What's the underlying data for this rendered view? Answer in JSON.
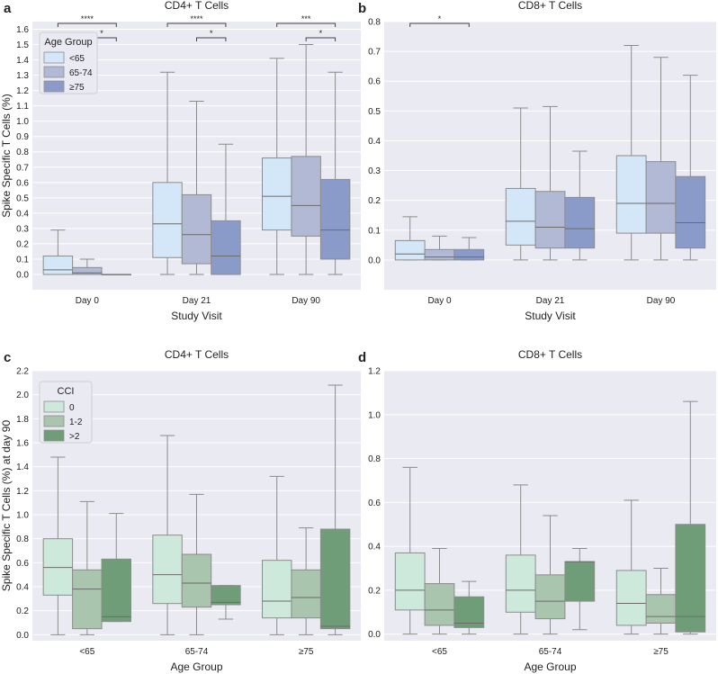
{
  "figure_colors": {
    "panel_bg": "#eaeaf2",
    "grid": "#ffffff",
    "whisker": "#8c8c8c",
    "median": "#6b6b6b",
    "age_palette": [
      "#d3e7f8",
      "#b1b9d5",
      "#8a9bc9"
    ],
    "cci_palette": [
      "#cde9dc",
      "#a9c5ad",
      "#6e9d78"
    ]
  },
  "chart_data": [
    {
      "id": "a",
      "panel_label": "a",
      "type": "box",
      "title": "CD4+ T Cells",
      "xlabel": "Study Visit",
      "ylabel": "Spike Specific T Cells (%)",
      "ylim": [
        -0.1,
        1.65
      ],
      "yticks": [
        "0.0",
        "0.1",
        "0.2",
        "0.3",
        "0.4",
        "0.5",
        "0.6",
        "0.7",
        "0.8",
        "0.9",
        "1.0",
        "1.1",
        "1.2",
        "1.3",
        "1.4",
        "1.5",
        "1.6"
      ],
      "categories": [
        "Day 0",
        "Day 21",
        "Day 90"
      ],
      "legend": {
        "title": "Age Group",
        "entries": [
          "<65",
          "65-74",
          "≥75"
        ]
      },
      "series": [
        {
          "name": "<65",
          "boxes": [
            {
              "low": 0.0,
              "q1": 0.0,
              "median": 0.03,
              "q3": 0.12,
              "high": 0.29
            },
            {
              "low": 0.0,
              "q1": 0.11,
              "median": 0.33,
              "q3": 0.6,
              "high": 1.32
            },
            {
              "low": 0.0,
              "q1": 0.29,
              "median": 0.51,
              "q3": 0.76,
              "high": 1.41
            }
          ]
        },
        {
          "name": "65-74",
          "boxes": [
            {
              "low": 0.0,
              "q1": 0.0,
              "median": 0.01,
              "q3": 0.045,
              "high": 0.1
            },
            {
              "low": 0.0,
              "q1": 0.07,
              "median": 0.26,
              "q3": 0.52,
              "high": 1.13
            },
            {
              "low": 0.0,
              "q1": 0.25,
              "median": 0.45,
              "q3": 0.77,
              "high": 1.5
            }
          ]
        },
        {
          "name": "≥75",
          "boxes": [
            {
              "low": 0.0,
              "q1": 0.0,
              "median": 0.0,
              "q3": 0.0,
              "high": 0.0
            },
            {
              "low": 0.0,
              "q1": 0.0,
              "median": 0.12,
              "q3": 0.35,
              "high": 0.85
            },
            {
              "low": 0.0,
              "q1": 0.1,
              "median": 0.29,
              "q3": 0.62,
              "high": 1.32
            }
          ]
        }
      ],
      "brackets": [
        {
          "category": 0,
          "from": 0,
          "to": 2,
          "level": 1,
          "label": "****"
        },
        {
          "category": 0,
          "from": 1,
          "to": 2,
          "level": 0,
          "label": "*"
        },
        {
          "category": 1,
          "from": 0,
          "to": 2,
          "level": 1,
          "label": "****"
        },
        {
          "category": 1,
          "from": 1,
          "to": 2,
          "level": 0,
          "label": "*"
        },
        {
          "category": 2,
          "from": 0,
          "to": 2,
          "level": 1,
          "label": "***"
        },
        {
          "category": 2,
          "from": 1,
          "to": 2,
          "level": 0,
          "label": "*"
        }
      ]
    },
    {
      "id": "b",
      "panel_label": "b",
      "type": "box",
      "title": "CD8+ T Cells",
      "xlabel": "Study Visit",
      "ylabel": "",
      "ylim": [
        -0.1,
        0.8
      ],
      "yticks": [
        "0.0",
        "0.1",
        "0.2",
        "0.3",
        "0.4",
        "0.5",
        "0.6",
        "0.7",
        "0.8"
      ],
      "categories": [
        "Day 0",
        "Day 21",
        "Day 90"
      ],
      "series": [
        {
          "name": "<65",
          "boxes": [
            {
              "low": 0.0,
              "q1": 0.0,
              "median": 0.02,
              "q3": 0.065,
              "high": 0.145
            },
            {
              "low": 0.0,
              "q1": 0.05,
              "median": 0.13,
              "q3": 0.24,
              "high": 0.51
            },
            {
              "low": 0.0,
              "q1": 0.09,
              "median": 0.19,
              "q3": 0.35,
              "high": 0.72
            }
          ]
        },
        {
          "name": "65-74",
          "boxes": [
            {
              "low": 0.0,
              "q1": 0.0,
              "median": 0.01,
              "q3": 0.035,
              "high": 0.08
            },
            {
              "low": 0.0,
              "q1": 0.04,
              "median": 0.11,
              "q3": 0.23,
              "high": 0.515
            },
            {
              "low": 0.0,
              "q1": 0.09,
              "median": 0.19,
              "q3": 0.33,
              "high": 0.68
            }
          ]
        },
        {
          "name": "≥75",
          "boxes": [
            {
              "low": 0.0,
              "q1": 0.0,
              "median": 0.01,
              "q3": 0.035,
              "high": 0.075
            },
            {
              "low": 0.0,
              "q1": 0.04,
              "median": 0.105,
              "q3": 0.21,
              "high": 0.365
            },
            {
              "low": 0.0,
              "q1": 0.04,
              "median": 0.125,
              "q3": 0.28,
              "high": 0.62
            }
          ]
        }
      ],
      "brackets": [
        {
          "category": 0,
          "from": 0,
          "to": 2,
          "level": 1,
          "label": "*"
        }
      ]
    },
    {
      "id": "c",
      "panel_label": "c",
      "type": "box",
      "title": "CD4+ T Cells",
      "xlabel": "Age Group",
      "ylabel": "Spike Specific T Cells (%) at day 90",
      "ylim": [
        -0.05,
        2.2
      ],
      "yticks": [
        "0.0",
        "0.2",
        "0.4",
        "0.6",
        "0.8",
        "1.0",
        "1.2",
        "1.4",
        "1.6",
        "1.8",
        "2.0",
        "2.2"
      ],
      "categories": [
        "<65",
        "65-74",
        "≥75"
      ],
      "legend": {
        "title": "CCI",
        "entries": [
          "0",
          "1-2",
          ">2"
        ]
      },
      "series": [
        {
          "name": "0",
          "boxes": [
            {
              "low": 0.0,
              "q1": 0.33,
              "median": 0.56,
              "q3": 0.8,
              "high": 1.48
            },
            {
              "low": 0.0,
              "q1": 0.26,
              "median": 0.5,
              "q3": 0.83,
              "high": 1.66
            },
            {
              "low": 0.0,
              "q1": 0.14,
              "median": 0.28,
              "q3": 0.62,
              "high": 1.32
            }
          ]
        },
        {
          "name": "1-2",
          "boxes": [
            {
              "low": 0.0,
              "q1": 0.05,
              "median": 0.38,
              "q3": 0.54,
              "high": 1.11
            },
            {
              "low": 0.0,
              "q1": 0.23,
              "median": 0.43,
              "q3": 0.67,
              "high": 1.17
            },
            {
              "low": 0.0,
              "q1": 0.14,
              "median": 0.31,
              "q3": 0.54,
              "high": 0.89
            }
          ]
        },
        {
          "name": ">2",
          "boxes": [
            {
              "low": 0.11,
              "q1": 0.11,
              "median": 0.15,
              "q3": 0.63,
              "high": 1.01
            },
            {
              "low": 0.13,
              "q1": 0.25,
              "median": 0.27,
              "q3": 0.41,
              "high": 0.41
            },
            {
              "low": 0.0,
              "q1": 0.05,
              "median": 0.07,
              "q3": 0.88,
              "high": 2.08
            }
          ]
        }
      ],
      "brackets": []
    },
    {
      "id": "d",
      "panel_label": "d",
      "type": "box",
      "title": "CD8+ T Cells",
      "xlabel": "Age Group",
      "ylabel": "",
      "ylim": [
        -0.03,
        1.2
      ],
      "yticks": [
        "0.0",
        "0.2",
        "0.4",
        "0.6",
        "0.8",
        "1.0",
        "1.2"
      ],
      "categories": [
        "<65",
        "65-74",
        "≥75"
      ],
      "series": [
        {
          "name": "0",
          "boxes": [
            {
              "low": 0.0,
              "q1": 0.11,
              "median": 0.2,
              "q3": 0.37,
              "high": 0.76
            },
            {
              "low": 0.0,
              "q1": 0.1,
              "median": 0.2,
              "q3": 0.36,
              "high": 0.68
            },
            {
              "low": 0.0,
              "q1": 0.04,
              "median": 0.14,
              "q3": 0.29,
              "high": 0.61
            }
          ]
        },
        {
          "name": "1-2",
          "boxes": [
            {
              "low": 0.0,
              "q1": 0.04,
              "median": 0.11,
              "q3": 0.23,
              "high": 0.39
            },
            {
              "low": 0.0,
              "q1": 0.07,
              "median": 0.15,
              "q3": 0.27,
              "high": 0.54
            },
            {
              "low": 0.0,
              "q1": 0.05,
              "median": 0.08,
              "q3": 0.18,
              "high": 0.3
            }
          ]
        },
        {
          "name": ">2",
          "boxes": [
            {
              "low": 0.0,
              "q1": 0.03,
              "median": 0.05,
              "q3": 0.17,
              "high": 0.24
            },
            {
              "low": 0.02,
              "q1": 0.15,
              "median": 0.33,
              "q3": 0.33,
              "high": 0.39
            },
            {
              "low": 0.0,
              "q1": 0.01,
              "median": 0.08,
              "q3": 0.5,
              "high": 1.06
            }
          ]
        }
      ],
      "brackets": []
    }
  ]
}
